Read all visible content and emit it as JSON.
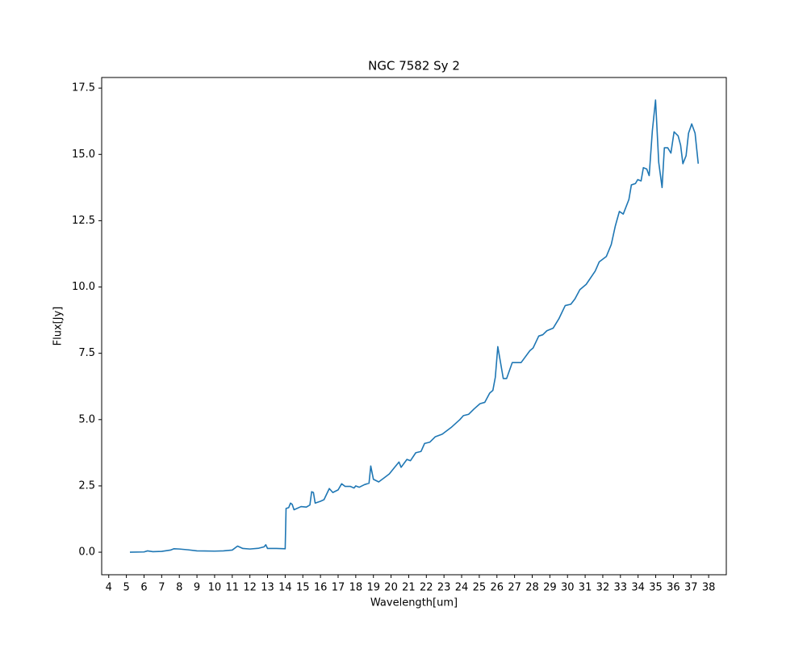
{
  "chart_data": {
    "type": "line",
    "title": "NGC 7582 Sy 2",
    "x_label": "Wavelength[um]",
    "y_label": "Flux[Jy]",
    "x": [
      5.2,
      6.0,
      6.2,
      6.5,
      7.0,
      7.5,
      7.7,
      8.0,
      8.5,
      9.0,
      10.0,
      10.5,
      11.0,
      11.3,
      11.6,
      12.0,
      12.5,
      12.8,
      12.9,
      13.0,
      13.5,
      14.0,
      14.05,
      14.2,
      14.3,
      14.4,
      14.5,
      14.9,
      15.2,
      15.4,
      15.5,
      15.6,
      15.7,
      16.0,
      16.2,
      16.5,
      16.7,
      17.0,
      17.2,
      17.4,
      17.7,
      17.9,
      18.0,
      18.2,
      18.5,
      18.75,
      18.85,
      19.0,
      19.3,
      19.6,
      19.9,
      20.2,
      20.45,
      20.57,
      20.9,
      21.1,
      21.4,
      21.7,
      21.9,
      22.2,
      22.5,
      22.9,
      23.4,
      23.9,
      24.1,
      24.4,
      24.7,
      25.04,
      25.31,
      25.59,
      25.77,
      25.91,
      26.05,
      26.36,
      26.55,
      26.87,
      27.37,
      27.87,
      28.05,
      28.37,
      28.6,
      28.83,
      29.19,
      29.51,
      29.87,
      30.19,
      30.42,
      30.7,
      31.06,
      31.57,
      31.8,
      32.2,
      32.48,
      32.71,
      32.94,
      33.16,
      33.48,
      33.62,
      33.85,
      33.98,
      34.17,
      34.3,
      34.49,
      34.63,
      34.81,
      34.99,
      35.17,
      35.36,
      35.49,
      35.68,
      35.86,
      36.04,
      36.27,
      36.41,
      36.54,
      36.72,
      36.86,
      37.04,
      37.23,
      37.41
    ],
    "series": [
      {
        "name": "NGC 7582",
        "color": "#1f77b4",
        "values": [
          0.0,
          0.01,
          0.05,
          0.02,
          0.03,
          0.08,
          0.13,
          0.12,
          0.09,
          0.05,
          0.04,
          0.05,
          0.08,
          0.23,
          0.14,
          0.12,
          0.15,
          0.2,
          0.28,
          0.14,
          0.14,
          0.13,
          1.65,
          1.68,
          1.85,
          1.8,
          1.6,
          1.72,
          1.7,
          1.78,
          2.28,
          2.25,
          1.85,
          1.92,
          1.98,
          2.4,
          2.25,
          2.35,
          2.58,
          2.48,
          2.48,
          2.42,
          2.5,
          2.45,
          2.55,
          2.6,
          3.25,
          2.75,
          2.65,
          2.8,
          2.95,
          3.2,
          3.4,
          3.2,
          3.5,
          3.45,
          3.75,
          3.8,
          4.1,
          4.15,
          4.35,
          4.45,
          4.7,
          5.0,
          5.15,
          5.2,
          5.4,
          5.6,
          5.65,
          6.0,
          6.1,
          6.6,
          7.75,
          6.55,
          6.55,
          7.15,
          7.15,
          7.6,
          7.7,
          8.15,
          8.2,
          8.35,
          8.45,
          8.8,
          9.3,
          9.35,
          9.55,
          9.9,
          10.1,
          10.6,
          10.95,
          11.15,
          11.6,
          12.3,
          12.85,
          12.75,
          13.3,
          13.85,
          13.9,
          14.05,
          14.0,
          14.5,
          14.45,
          14.2,
          15.9,
          17.05,
          14.7,
          13.75,
          15.25,
          15.25,
          15.05,
          15.85,
          15.7,
          15.35,
          14.65,
          14.95,
          15.8,
          16.15,
          15.8,
          14.65
        ]
      }
    ],
    "xlim": [
      3.6,
      39.0
    ],
    "ylim": [
      -0.85,
      17.9
    ],
    "xticks": [
      4,
      5,
      6,
      7,
      8,
      9,
      10,
      11,
      12,
      13,
      14,
      15,
      16,
      17,
      18,
      19,
      20,
      21,
      22,
      23,
      24,
      25,
      26,
      27,
      28,
      29,
      30,
      31,
      32,
      33,
      34,
      35,
      36,
      37,
      38
    ],
    "yticks": [
      {
        "value": 0,
        "label": "0.0"
      },
      {
        "value": 2.5,
        "label": "2.5"
      },
      {
        "value": 5,
        "label": "5.0"
      },
      {
        "value": 7.5,
        "label": "7.5"
      },
      {
        "value": 10,
        "label": "10.0"
      },
      {
        "value": 12.5,
        "label": "12.5"
      },
      {
        "value": 15,
        "label": "15.0"
      },
      {
        "value": 17.5,
        "label": "17.5"
      }
    ],
    "grid": false
  }
}
